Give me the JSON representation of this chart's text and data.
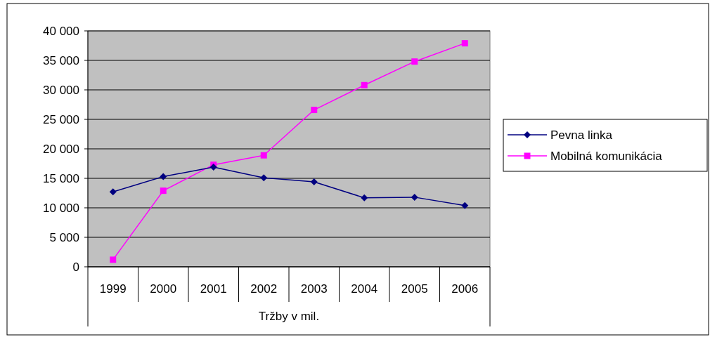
{
  "chart_data": {
    "type": "line",
    "xlabel": "Tržby v mil.",
    "categories": [
      "1999",
      "2000",
      "2001",
      "2002",
      "2003",
      "2004",
      "2005",
      "2006"
    ],
    "series": [
      {
        "name": "Pevna linka",
        "color": "#000080",
        "marker": "diamond",
        "values": [
          12700,
          15300,
          16900,
          15100,
          14400,
          11700,
          11800,
          10400
        ]
      },
      {
        "name": "Mobilná komunikácia",
        "color": "#ff00ff",
        "marker": "square",
        "values": [
          1200,
          12900,
          17300,
          18900,
          26600,
          30800,
          34800,
          37900
        ]
      }
    ],
    "ylim": [
      0,
      40000
    ],
    "yticks": [
      {
        "value": 0,
        "label": "0"
      },
      {
        "value": 5000,
        "label": "5 000"
      },
      {
        "value": 10000,
        "label": "10 000"
      },
      {
        "value": 15000,
        "label": "15 000"
      },
      {
        "value": 20000,
        "label": "20 000"
      },
      {
        "value": 25000,
        "label": "25 000"
      },
      {
        "value": 30000,
        "label": "30 000"
      },
      {
        "value": 35000,
        "label": "35 000"
      },
      {
        "value": 40000,
        "label": "40 000"
      }
    ],
    "grid": "y",
    "legend": "right",
    "line_style": "solid"
  }
}
